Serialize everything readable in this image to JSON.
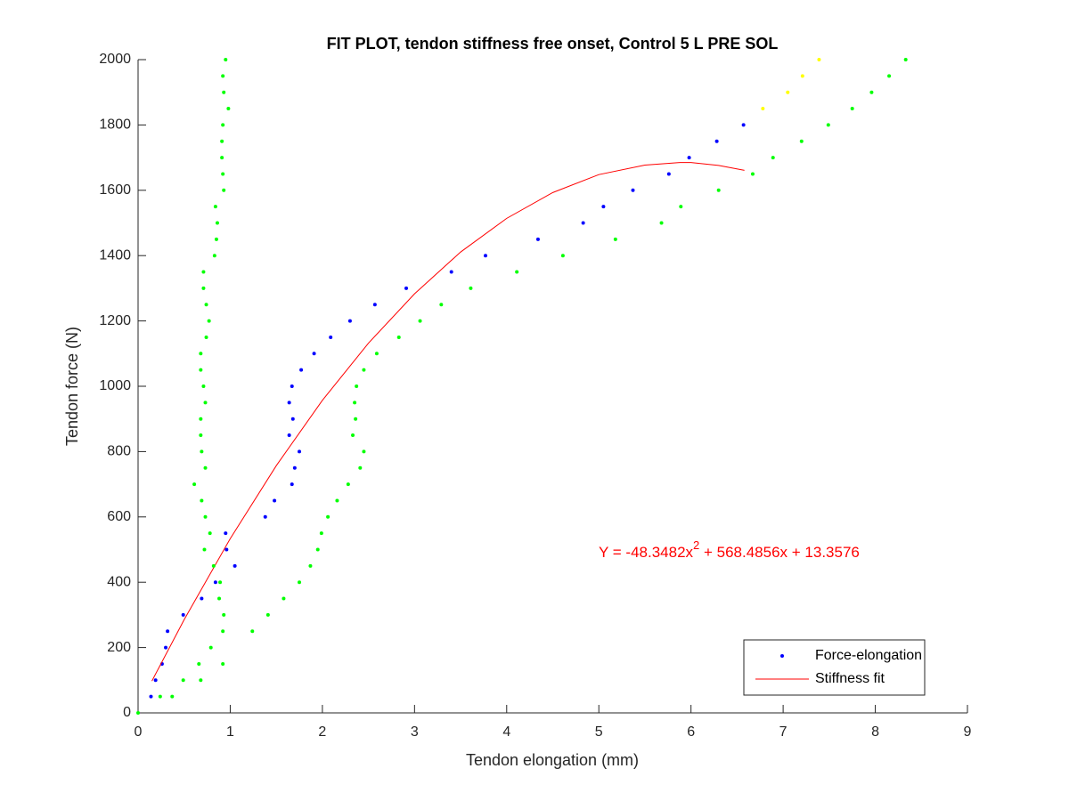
{
  "chart_data": {
    "type": "scatter",
    "title": "FIT PLOT, tendon stiffness free onset, Control 5 L PRE SOL",
    "x_label": "Tendon elongation (mm)",
    "y_label": "Tendon force (N)",
    "xlim": [
      0,
      9
    ],
    "ylim": [
      0,
      2000
    ],
    "xticks": [
      0,
      1,
      2,
      3,
      4,
      5,
      6,
      7,
      8,
      9
    ],
    "yticks": [
      0,
      200,
      400,
      600,
      800,
      1000,
      1200,
      1400,
      1600,
      1800,
      2000
    ],
    "legend": "southeast",
    "annotation": {
      "parts": [
        "Y = -48.3482x",
        "2",
        " + 568.4856x + 13.3576"
      ],
      "color": "#ff0000"
    },
    "series": [
      {
        "name": "Force-elongation",
        "mode": "markers",
        "color": "#0000ff",
        "x": [
          0.14,
          0.19,
          0.26,
          0.3,
          0.32,
          0.49,
          0.69,
          0.84,
          1.05,
          0.96,
          0.95,
          1.38,
          1.48,
          1.67,
          1.7,
          1.75,
          1.64,
          1.68,
          1.64,
          1.67,
          1.77,
          1.91,
          2.09,
          2.3,
          2.57,
          2.91,
          3.4,
          3.77,
          4.34,
          4.83,
          5.05,
          5.37,
          5.76,
          5.98,
          6.28,
          6.57
        ],
        "values": [
          50,
          100,
          150,
          200,
          250,
          300,
          350,
          400,
          450,
          500,
          550,
          600,
          650,
          700,
          750,
          800,
          850,
          900,
          950,
          1000,
          1050,
          1100,
          1150,
          1200,
          1250,
          1300,
          1350,
          1400,
          1450,
          1500,
          1550,
          1600,
          1650,
          1700,
          1750,
          1800
        ]
      },
      {
        "name": "Stiffness fit",
        "mode": "line",
        "color": "#ff0000",
        "x": [
          0.15,
          0.5,
          1,
          1.5,
          2,
          2.5,
          3,
          3.5,
          4,
          4.5,
          5,
          5.5,
          5.88,
          6,
          6.3,
          6.58
        ],
        "values": [
          97.6,
          285.5,
          533.5,
          757,
          957,
          1132,
          1283,
          1411,
          1514,
          1593,
          1648,
          1677,
          1685,
          1685,
          1676,
          1661
        ]
      },
      {
        "mode": "markers",
        "color": "#00ff00",
        "x": [
          0,
          0.24,
          0.37,
          0.49,
          0.66,
          0.79,
          1.24,
          1.41,
          1.58,
          1.75,
          1.87,
          1.95,
          1.99,
          2.06,
          2.16,
          2.28,
          2.41,
          2.45,
          2.33,
          2.36,
          2.35,
          2.37,
          2.45,
          2.59,
          2.83,
          3.06,
          3.29,
          3.61,
          4.11,
          4.61,
          5.18,
          5.68,
          5.89,
          6.3,
          6.67,
          6.89,
          7.2,
          7.49,
          7.75,
          7.96,
          8.15,
          8.33,
          0.68,
          0.92,
          0.92,
          0.93,
          0.88,
          0.89,
          0.82,
          0.72,
          0.78,
          0.73,
          0.69,
          0.61,
          0.73,
          0.69,
          0.68,
          0.68,
          0.73,
          0.71,
          0.68,
          0.68,
          0.74,
          0.77,
          0.74,
          0.71,
          0.71,
          0.83,
          0.85,
          0.86,
          0.84,
          0.93,
          0.92,
          0.91,
          0.91,
          0.92,
          0.98,
          0.93,
          0.92,
          0.95
        ],
        "values": [
          0,
          50,
          50,
          100,
          150,
          200,
          250,
          300,
          350,
          400,
          450,
          500,
          550,
          600,
          650,
          700,
          750,
          800,
          850,
          900,
          950,
          1000,
          1050,
          1100,
          1150,
          1200,
          1250,
          1300,
          1350,
          1400,
          1450,
          1500,
          1550,
          1600,
          1650,
          1700,
          1750,
          1800,
          1850,
          1900,
          1950,
          2000,
          100,
          150,
          250,
          300,
          350,
          400,
          450,
          500,
          550,
          600,
          650,
          700,
          750,
          800,
          850,
          900,
          950,
          1000,
          1050,
          1100,
          1150,
          1200,
          1250,
          1300,
          1350,
          1400,
          1450,
          1500,
          1550,
          1600,
          1650,
          1700,
          1750,
          1800,
          1850,
          1900,
          1950,
          2000
        ]
      },
      {
        "mode": "markers",
        "color": "#ffff00",
        "x": [
          6.78,
          7.05,
          7.21,
          7.39
        ],
        "values": [
          1850,
          1900,
          1950,
          2000
        ]
      }
    ]
  }
}
